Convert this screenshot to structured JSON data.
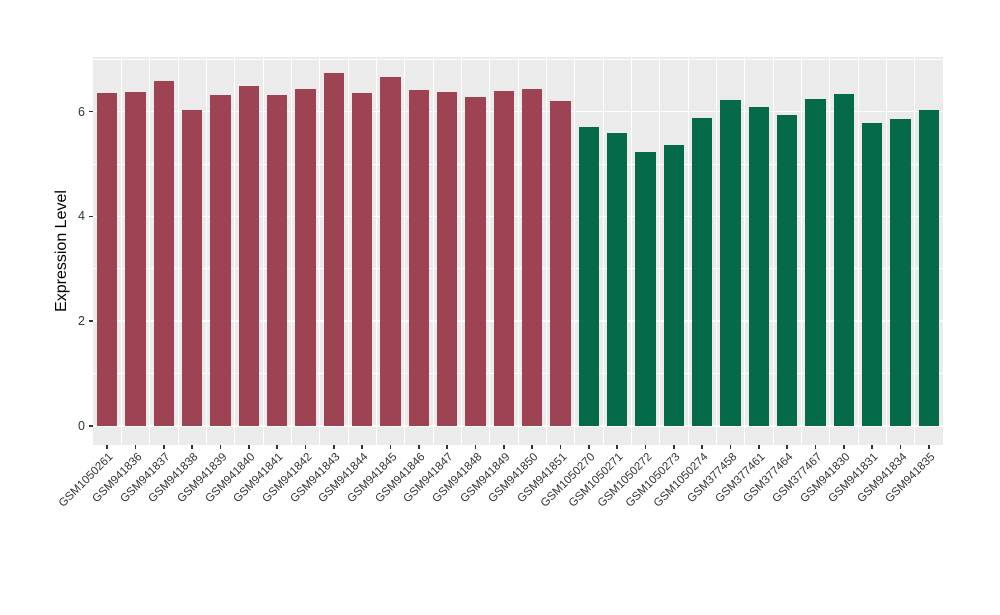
{
  "chart_data": {
    "type": "bar",
    "title": "",
    "xlabel": "",
    "ylabel": "Expression Level",
    "ylim": [
      -0.36,
      7.06
    ],
    "yticks": [
      0,
      2,
      4,
      6
    ],
    "ytick_labels": [
      "0",
      "2",
      "4",
      "6"
    ],
    "minor_yticks": [
      1,
      3,
      5,
      7
    ],
    "grid": "white major and minor gridlines on gray panel",
    "legend_position": "none",
    "categories": [
      "GSM1050261",
      "GSM941836",
      "GSM941837",
      "GSM941838",
      "GSM941839",
      "GSM941840",
      "GSM941841",
      "GSM941842",
      "GSM941843",
      "GSM941844",
      "GSM941845",
      "GSM941846",
      "GSM941847",
      "GSM941848",
      "GSM941849",
      "GSM941850",
      "GSM941851",
      "GSM1050270",
      "GSM1050271",
      "GSM1050272",
      "GSM1050273",
      "GSM1050274",
      "GSM377458",
      "GSM377461",
      "GSM377464",
      "GSM377467",
      "GSM941830",
      "GSM941831",
      "GSM941834",
      "GSM941835"
    ],
    "values": [
      6.36,
      6.37,
      6.59,
      6.04,
      6.32,
      6.48,
      6.32,
      6.44,
      6.73,
      6.36,
      6.66,
      6.41,
      6.37,
      6.28,
      6.4,
      6.43,
      6.21,
      5.71,
      5.6,
      5.23,
      5.36,
      5.87,
      6.22,
      6.09,
      5.94,
      6.24,
      6.33,
      5.79,
      5.85,
      6.03
    ],
    "groups": [
      "group1",
      "group1",
      "group1",
      "group1",
      "group1",
      "group1",
      "group1",
      "group1",
      "group1",
      "group1",
      "group1",
      "group1",
      "group1",
      "group1",
      "group1",
      "group1",
      "group1",
      "group2",
      "group2",
      "group2",
      "group2",
      "group2",
      "group2",
      "group2",
      "group2",
      "group2",
      "group2",
      "group2",
      "group2",
      "group2"
    ]
  },
  "style": {
    "group_colors": {
      "group1": "#9E4354",
      "group2": "#046A49"
    },
    "panel_bg": "#EBEBEB",
    "grid_color": "#FFFFFF",
    "tick_color": "#333333",
    "axis_text_color": "#333333",
    "axis_title_color": "#000000",
    "figure_bg": "#FFFFFF"
  }
}
